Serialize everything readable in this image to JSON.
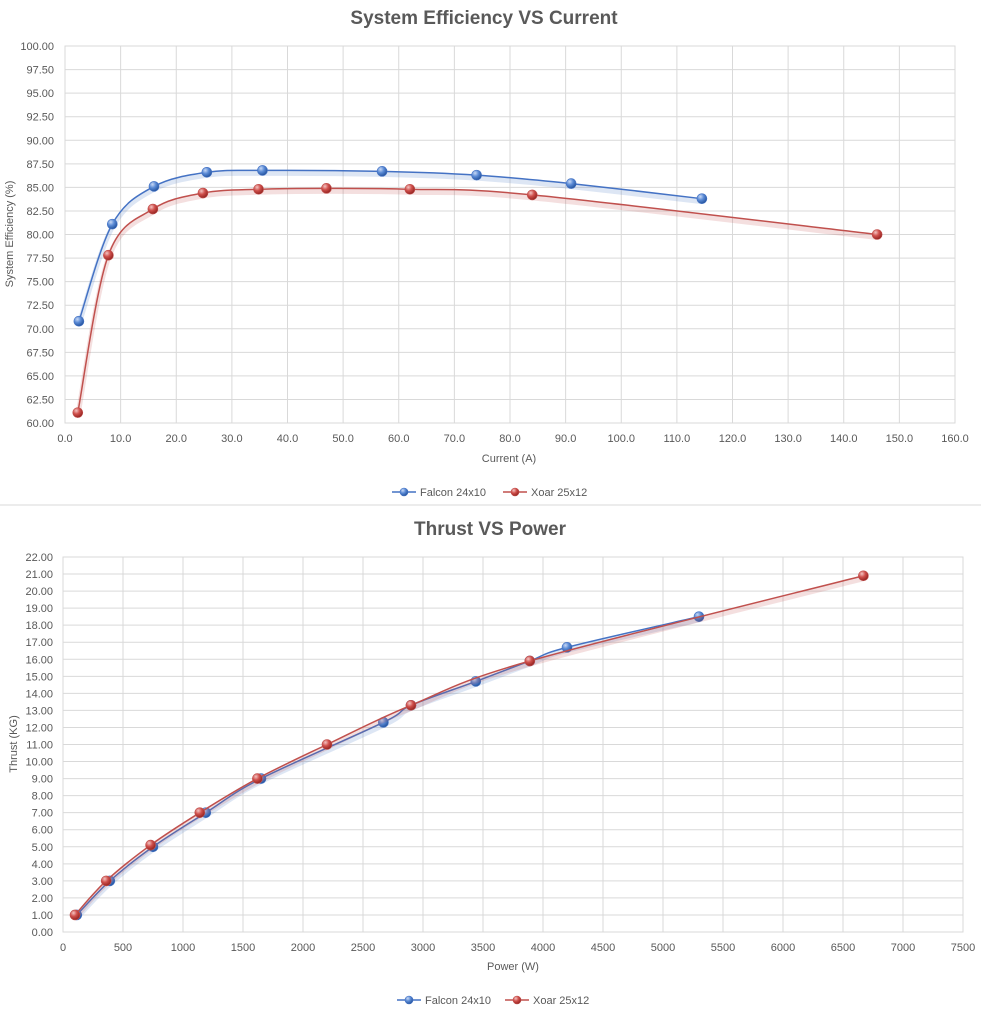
{
  "chart_data": [
    {
      "type": "line",
      "title": "System Efficiency VS Current",
      "xlabel": "Current (A)",
      "ylabel": "System Efficiency (%)",
      "xlim": [
        0,
        160
      ],
      "ylim": [
        60,
        100
      ],
      "x_ticks": [
        "0.0",
        "10.0",
        "20.0",
        "30.0",
        "40.0",
        "50.0",
        "60.0",
        "70.0",
        "80.0",
        "90.0",
        "100.0",
        "110.0",
        "120.0",
        "130.0",
        "140.0",
        "150.0",
        "160.0"
      ],
      "y_ticks": [
        "60.00",
        "62.50",
        "65.00",
        "67.50",
        "70.00",
        "72.50",
        "75.00",
        "77.50",
        "80.00",
        "82.50",
        "85.00",
        "87.50",
        "90.00",
        "92.50",
        "95.00",
        "97.50",
        "100.00"
      ],
      "grid": true,
      "legend": "bottom",
      "smooth": true,
      "series": [
        {
          "name": "Falcon 24x10",
          "color": "#4472c4",
          "x": [
            2.5,
            8.5,
            16.0,
            25.5,
            35.5,
            57.0,
            74.0,
            91.0,
            114.5
          ],
          "y": [
            70.8,
            81.1,
            85.1,
            86.6,
            86.8,
            86.7,
            86.3,
            85.4,
            83.8
          ]
        },
        {
          "name": "Xoar 25x12",
          "color": "#c0504d",
          "x": [
            2.3,
            7.8,
            15.8,
            24.8,
            34.8,
            47.0,
            62.0,
            84.0,
            146.0
          ],
          "y": [
            61.1,
            77.8,
            82.7,
            84.4,
            84.8,
            84.9,
            84.8,
            84.2,
            80.0
          ]
        }
      ]
    },
    {
      "type": "line",
      "title": "Thrust VS Power",
      "xlabel": "Power (W)",
      "ylabel": "Thrust (KG)",
      "xlim": [
        0,
        7500
      ],
      "ylim": [
        0,
        22
      ],
      "x_ticks": [
        "0",
        "500",
        "1000",
        "1500",
        "2000",
        "2500",
        "3000",
        "3500",
        "4000",
        "4500",
        "5000",
        "5500",
        "6000",
        "6500",
        "7000",
        "7500"
      ],
      "y_ticks": [
        "0.00",
        "1.00",
        "2.00",
        "3.00",
        "4.00",
        "5.00",
        "6.00",
        "7.00",
        "8.00",
        "9.00",
        "10.00",
        "11.00",
        "12.00",
        "13.00",
        "14.00",
        "15.00",
        "16.00",
        "17.00",
        "18.00",
        "19.00",
        "20.00",
        "21.00",
        "22.00"
      ],
      "grid": true,
      "legend": "bottom",
      "smooth": true,
      "series": [
        {
          "name": "Falcon 24x10",
          "color": "#4472c4",
          "x": [
            115,
            390,
            750,
            1190,
            1650,
            2670,
            2900,
            3440,
            3890,
            4200,
            5300
          ],
          "y": [
            1.0,
            3.0,
            5.0,
            7.0,
            9.0,
            12.3,
            13.3,
            14.7,
            15.9,
            16.7,
            18.5
          ]
        },
        {
          "name": "Xoar 25x12",
          "color": "#c0504d",
          "x": [
            100,
            360,
            730,
            1140,
            1620,
            2200,
            2900,
            3890,
            6670
          ],
          "y": [
            1.0,
            3.0,
            5.1,
            7.0,
            9.0,
            11.0,
            13.3,
            15.9,
            20.9
          ]
        }
      ]
    }
  ]
}
